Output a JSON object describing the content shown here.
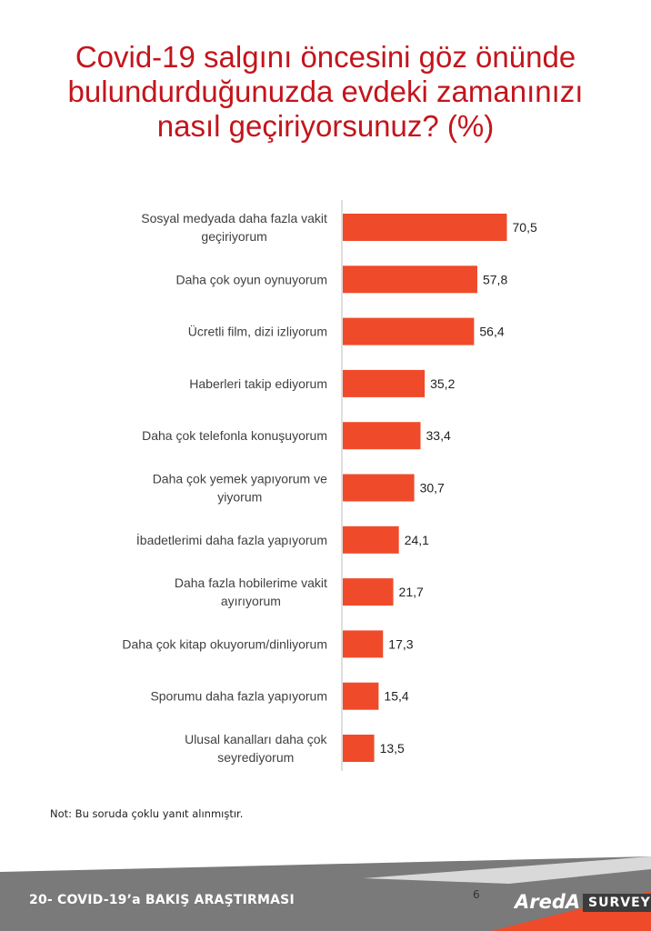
{
  "title": "Covid-19 salgını öncesini göz önünde\nbulundurduğunuzda  evdeki zamanınızı\nnasıl geçiriyorsunuz? (%)",
  "chart_data": {
    "type": "bar",
    "orientation": "horizontal",
    "categories": [
      "Sosyal medyada daha fazla vakit geçiriyorum",
      "Daha çok oyun oynuyorum",
      "Ücretli film, dizi izliyorum",
      "Haberleri takip ediyorum",
      "Daha çok telefonla konuşuyorum",
      "Daha çok yemek yapıyorum ve yiyorum",
      "İbadetlerimi daha fazla yapıyorum",
      "Daha fazla hobilerime vakit ayırıyorum",
      "Daha çok kitap okuyorum/dinliyorum",
      "Sporumu daha fazla yapıyorum",
      "Ulusal kanalları daha çok seyrediyorum"
    ],
    "category_lines": [
      [
        "Sosyal medyada daha fazla vakit",
        "geçiriyorum"
      ],
      [
        "Daha çok oyun oynuyorum"
      ],
      [
        "Ücretli film, dizi izliyorum"
      ],
      [
        "Haberleri takip ediyorum"
      ],
      [
        "Daha çok telefonla konuşuyorum"
      ],
      [
        "Daha çok yemek yapıyorum ve",
        "yiyorum"
      ],
      [
        "İbadetlerimi daha fazla yapıyorum"
      ],
      [
        "Daha fazla hobilerime vakit",
        "ayırıyorum"
      ],
      [
        "Daha çok kitap okuyorum/dinliyorum"
      ],
      [
        "Sporumu daha fazla yapıyorum"
      ],
      [
        "Ulusal kanalları daha çok",
        "seyrediyorum"
      ]
    ],
    "values": [
      70.5,
      57.8,
      56.4,
      35.2,
      33.4,
      30.7,
      24.1,
      21.7,
      17.3,
      15.4,
      13.5
    ],
    "value_labels": [
      "70,5",
      "57,8",
      "56,4",
      "35,2",
      "33,4",
      "30,7",
      "24,1",
      "21,7",
      "17,3",
      "15,4",
      "13,5"
    ],
    "xlim": [
      0,
      100
    ],
    "bar_color": "#ef4b2a",
    "grid": false,
    "legend": "none"
  },
  "note": "Not: Bu soruda  çoklu yanıt alınmıştır.",
  "footer": {
    "title": "20- COVID-19’a BAKIŞ ARAŞTIRMASI",
    "page": "6",
    "logo_text": "AredA",
    "logo_badge": "SURVEY",
    "accent_color": "#ef4b2a",
    "band_color": "#7a7a7a"
  }
}
